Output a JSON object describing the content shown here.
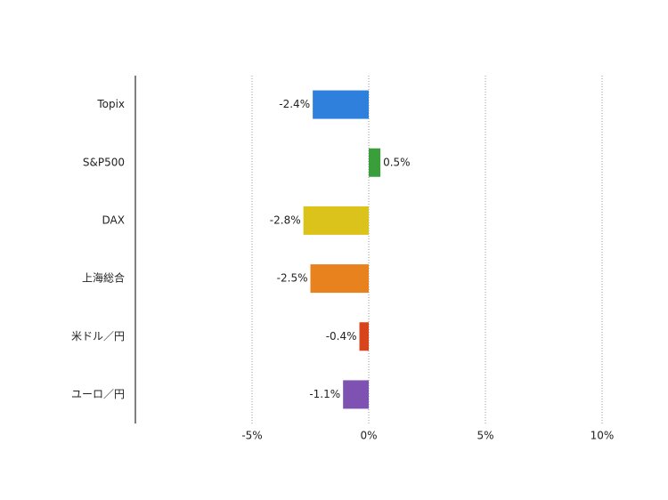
{
  "chart_data": {
    "type": "bar",
    "orientation": "horizontal",
    "categories": [
      "Topix",
      "S&P500",
      "DAX",
      "上海総合",
      "米ドル／円",
      "ユーロ／円"
    ],
    "values": [
      -2.4,
      0.5,
      -2.8,
      -2.5,
      -0.4,
      -1.1
    ],
    "value_labels": [
      "-2.4%",
      "0.5%",
      "-2.8%",
      "-2.5%",
      "-0.4%",
      "-1.1%"
    ],
    "colors": [
      "#2e80dc",
      "#3a9e3a",
      "#dcc31c",
      "#e8821e",
      "#d8441c",
      "#7d52b2"
    ],
    "xlim": [
      -10,
      10
    ],
    "xticks": [
      {
        "value": -5,
        "label": "-5%"
      },
      {
        "value": 0,
        "label": "0%"
      },
      {
        "value": 5,
        "label": "5%"
      },
      {
        "value": 10,
        "label": "10%"
      }
    ],
    "grid": true
  }
}
